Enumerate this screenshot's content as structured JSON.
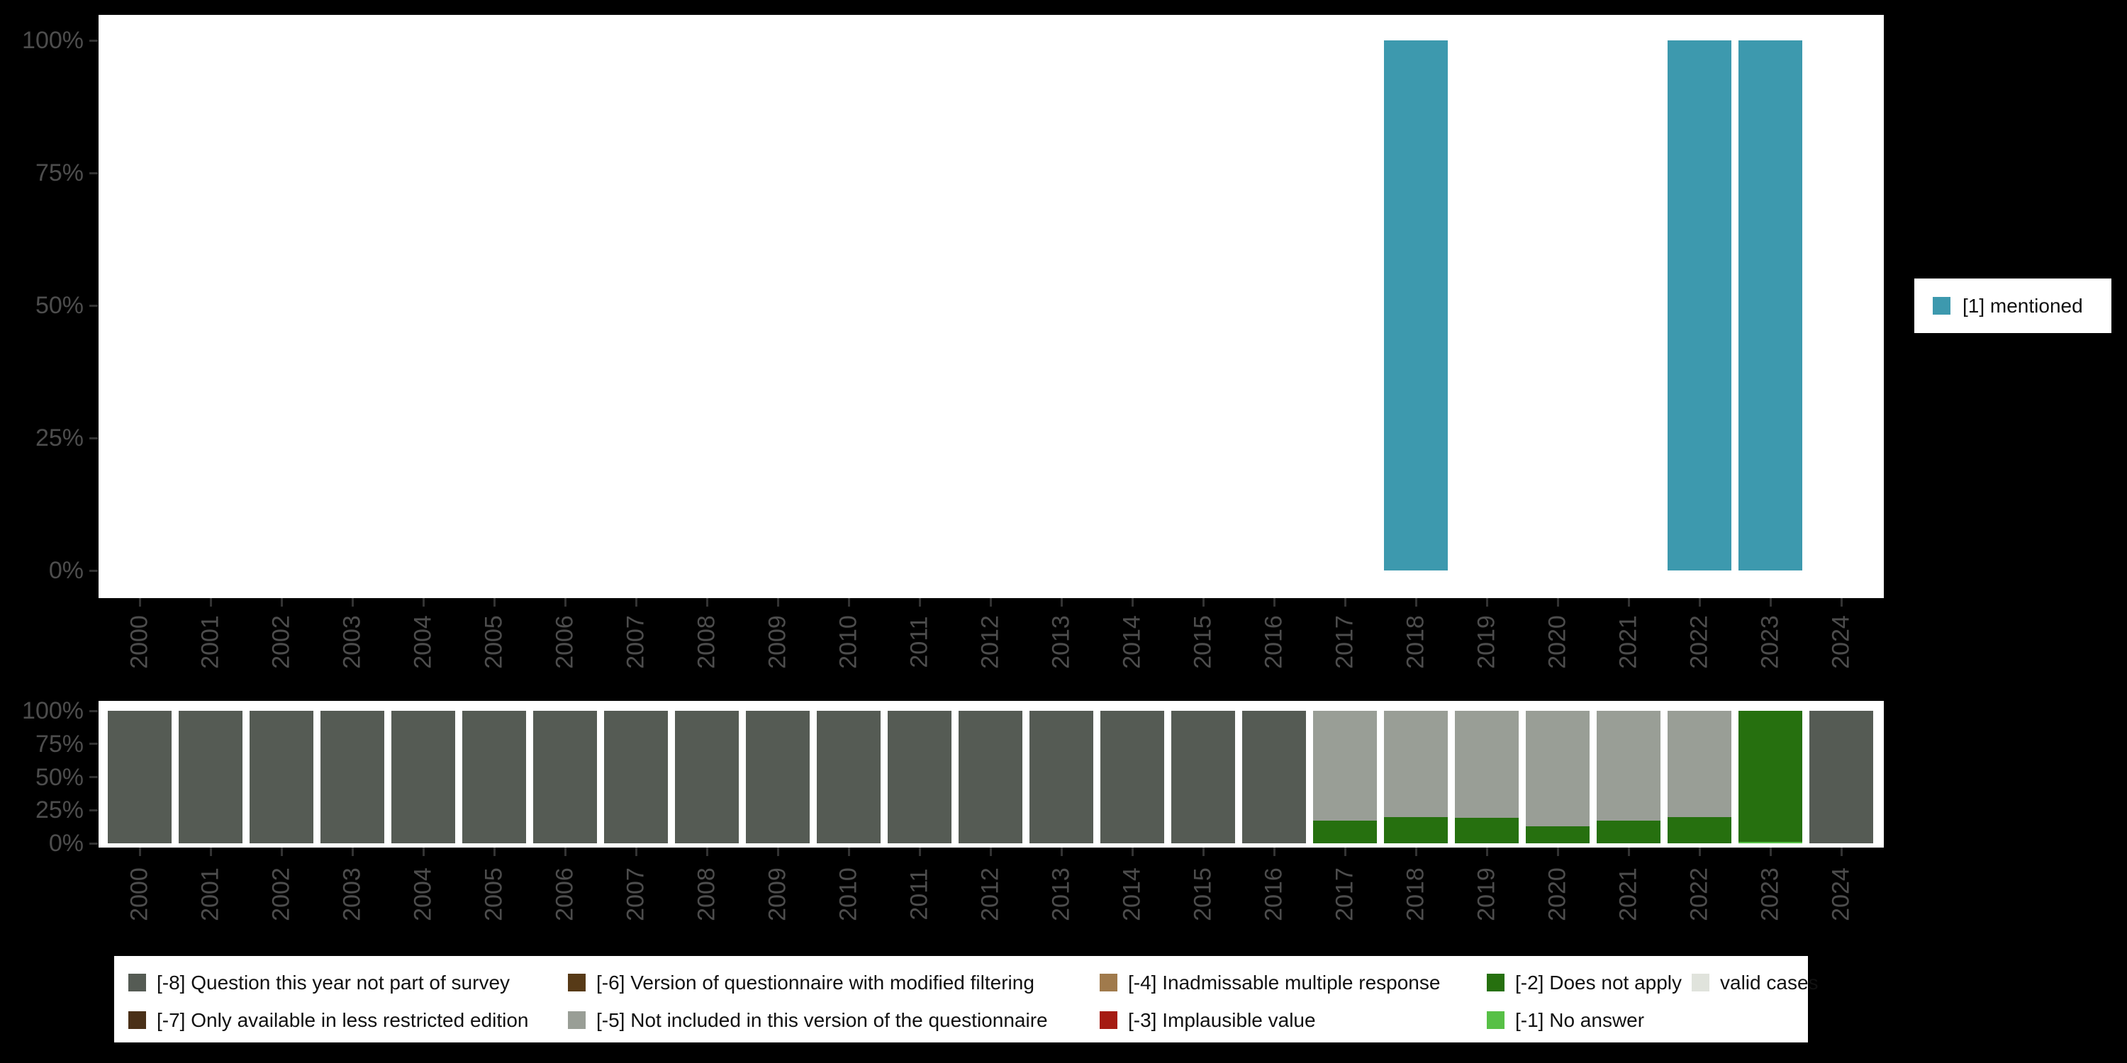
{
  "colors": {
    "background": "#000000",
    "plot_background": "#ffffff",
    "axis_text": "#4d4d4d",
    "tick_mark": "#333333",
    "legend_text": "#111111"
  },
  "chart_data": [
    {
      "type": "bar",
      "categories": [
        "2000",
        "2001",
        "2002",
        "2003",
        "2004",
        "2005",
        "2006",
        "2007",
        "2008",
        "2009",
        "2010",
        "2011",
        "2012",
        "2013",
        "2014",
        "2015",
        "2016",
        "2017",
        "2018",
        "2019",
        "2020",
        "2021",
        "2022",
        "2023",
        "2024"
      ],
      "y_tick_labels": [
        "0%",
        "25%",
        "50%",
        "75%",
        "100%"
      ],
      "ylim": [
        0,
        100
      ],
      "grid": false,
      "legend_position": "right",
      "legend_label": "[1] mentioned",
      "series": [
        {
          "key": "mentioned",
          "name": "[1] mentioned",
          "color": "#3d99ae",
          "values": [
            0,
            0,
            0,
            0,
            0,
            0,
            0,
            0,
            0,
            0,
            0,
            0,
            0,
            0,
            0,
            0,
            0,
            0,
            100,
            0,
            0,
            0,
            100,
            100,
            0
          ]
        }
      ]
    },
    {
      "type": "stacked-bar",
      "categories": [
        "2000",
        "2001",
        "2002",
        "2003",
        "2004",
        "2005",
        "2006",
        "2007",
        "2008",
        "2009",
        "2010",
        "2011",
        "2012",
        "2013",
        "2014",
        "2015",
        "2016",
        "2017",
        "2018",
        "2019",
        "2020",
        "2021",
        "2022",
        "2023",
        "2024"
      ],
      "y_tick_labels": [
        "0%",
        "25%",
        "50%",
        "75%",
        "100%"
      ],
      "ylim": [
        0,
        100
      ],
      "grid": false,
      "legend_position": "bottom",
      "series": [
        {
          "key": "m1",
          "name": "[-1] No answer",
          "color": "#57c046",
          "values": [
            0,
            0,
            0,
            0,
            0,
            0,
            0,
            0,
            0,
            0,
            0,
            0,
            0,
            0,
            0,
            0,
            0,
            0,
            0,
            0,
            0,
            0,
            0,
            1,
            0
          ]
        },
        {
          "key": "m2",
          "name": "[-2] Does not apply",
          "color": "#26700f",
          "values": [
            0,
            0,
            0,
            0,
            0,
            0,
            0,
            0,
            0,
            0,
            0,
            0,
            0,
            0,
            0,
            0,
            0,
            17,
            20,
            19,
            13,
            17,
            20,
            99,
            0
          ]
        },
        {
          "key": "m5",
          "name": "[-5] Not included in this version of the questionnaire",
          "color": "#999e96",
          "values": [
            0,
            0,
            0,
            0,
            0,
            0,
            0,
            0,
            0,
            0,
            0,
            0,
            0,
            0,
            0,
            0,
            0,
            83,
            80,
            81,
            87,
            83,
            80,
            0,
            0
          ]
        },
        {
          "key": "m8",
          "name": "[-8] Question this year not part of survey",
          "color": "#555b54",
          "values": [
            100,
            100,
            100,
            100,
            100,
            100,
            100,
            100,
            100,
            100,
            100,
            100,
            100,
            100,
            100,
            100,
            100,
            0,
            0,
            0,
            0,
            0,
            0,
            0,
            100
          ]
        }
      ]
    }
  ],
  "missing_legend": {
    "items": [
      {
        "key": "m8",
        "label": "[-8] Question this year not part of survey",
        "color": "#555b54"
      },
      {
        "key": "m7",
        "label": "[-7] Only available in less restricted edition",
        "color": "#4a3018"
      },
      {
        "key": "m6",
        "label": "[-6] Version of questionnaire with modified filtering",
        "color": "#573a17"
      },
      {
        "key": "m5",
        "label": "[-5] Not included in this version of the questionnaire",
        "color": "#999e96"
      },
      {
        "key": "m4",
        "label": "[-4] Inadmissable multiple response",
        "color": "#a07a4c"
      },
      {
        "key": "m3",
        "label": "[-3] Implausible value",
        "color": "#a51b12"
      },
      {
        "key": "m2",
        "label": "[-2] Does not apply",
        "color": "#26700f"
      },
      {
        "key": "m1",
        "label": "[-1] No answer",
        "color": "#57c046"
      },
      {
        "key": "valid",
        "label": "valid cases",
        "color": "#e0e3dc"
      }
    ]
  }
}
